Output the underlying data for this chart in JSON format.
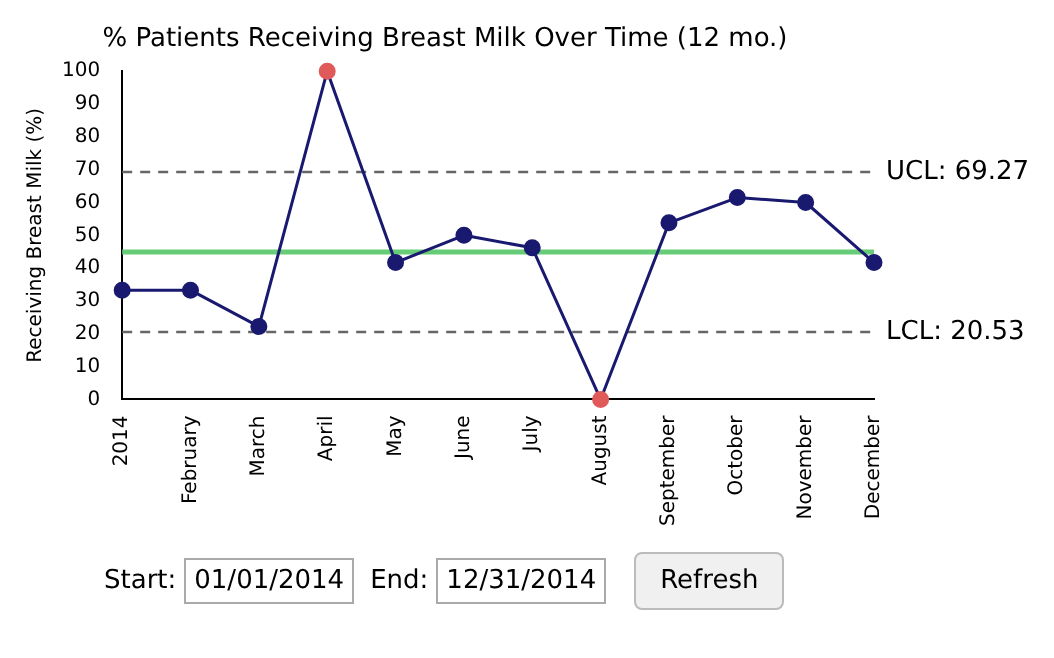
{
  "chart_data": {
    "type": "line",
    "title": "% Patients Receiving Breast Milk Over Time (12 mo.)",
    "ylabel": "Receiving Breast Milk (%)",
    "categories": [
      "2014",
      "February",
      "March",
      "April",
      "May",
      "June",
      "July",
      "August",
      "September",
      "October",
      "November",
      "December"
    ],
    "series": [
      {
        "color": "#191970",
        "colors": [
          "#191970",
          "#191970",
          "#191970",
          "#e05a5a",
          "#191970",
          "#191970",
          "#191970",
          "#e05a5a",
          "#191970",
          "#191970",
          "#191970",
          "#191970"
        ],
        "values": [
          33.3,
          33.3,
          22.2,
          100,
          41.7,
          50,
          46.2,
          0,
          53.8,
          61.5,
          60,
          41.7
        ]
      }
    ],
    "ylim": [
      0,
      100
    ],
    "yticks": [
      0,
      10,
      20,
      30,
      40,
      50,
      60,
      70,
      80,
      90,
      100
    ],
    "grid": false,
    "legend": false,
    "marker": "circle",
    "line_style": "solid",
    "ref_lines": [
      {
        "axis": "y",
        "value": 69.27,
        "label": "UCL: 69.27",
        "color": "#666666",
        "line_style": "dashed"
      },
      {
        "axis": "y",
        "value": 20.53,
        "label": "LCL: 20.53",
        "color": "#666666",
        "line_style": "dashed"
      },
      {
        "axis": "y",
        "value": 44.9,
        "label": null,
        "color": "#66cc77",
        "line_style": "solid"
      }
    ],
    "annotations": [
      "Start:",
      "01/01/2014",
      "End:",
      "12/31/2014",
      "Refresh"
    ]
  }
}
